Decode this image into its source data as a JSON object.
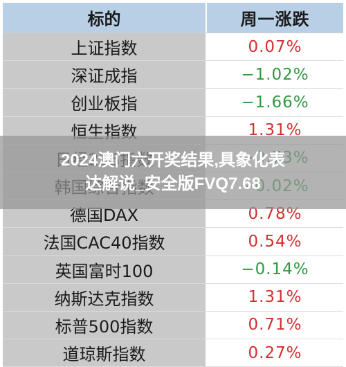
{
  "table": {
    "header": {
      "name": "标的",
      "change": "周一涨跌"
    },
    "rows": [
      {
        "name": "上证指数",
        "change": "0.07%",
        "direction": "up"
      },
      {
        "name": "深证成指",
        "change": "−1.02%",
        "direction": "down"
      },
      {
        "name": "创业板指",
        "change": "−1.66%",
        "direction": "down"
      },
      {
        "name": "恒生指数",
        "change": "1.31%",
        "direction": "up"
      },
      {
        "name": "日经225指数",
        "change": "−0.73%",
        "direction": "down"
      },
      {
        "name": "韩国综合指数",
        "change": "−0.02%",
        "direction": "down"
      },
      {
        "name": "德国DAX",
        "change": "0.78%",
        "direction": "up"
      },
      {
        "name": "法国CAC40指数",
        "change": "0.54%",
        "direction": "up"
      },
      {
        "name": "英国富时100",
        "change": "−0.14%",
        "direction": "down"
      },
      {
        "name": "纳斯达克指数",
        "change": "1.31%",
        "direction": "up"
      },
      {
        "name": "标普500指数",
        "change": "0.71%",
        "direction": "up"
      },
      {
        "name": "道琼斯指数",
        "change": "0.27%",
        "direction": "up"
      }
    ]
  },
  "overlay": {
    "line1": "2024澳门六开奖结果,具象化表",
    "line2": "达解说_安全版FVQ7.68"
  },
  "colors": {
    "up": "#d32f2f",
    "down": "#2e9a3f",
    "header_bg": "#b9cfe6",
    "name_bg": "#c9c9c9"
  }
}
